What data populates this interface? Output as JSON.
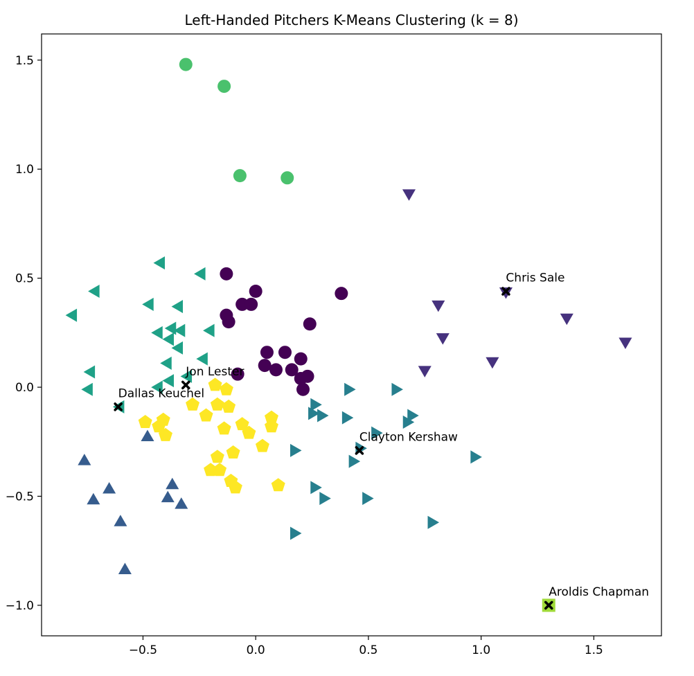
{
  "chart_data": {
    "type": "scatter",
    "title": "Left-Handed Pitchers K-Means Clustering (k = 8)",
    "xlabel": "",
    "ylabel": "",
    "xlim": [
      -0.95,
      1.8
    ],
    "ylim": [
      -1.14,
      1.62
    ],
    "x_ticks": [
      {
        "value": -0.5,
        "label": "−0.5"
      },
      {
        "value": 0.0,
        "label": "0.0"
      },
      {
        "value": 0.5,
        "label": "0.5"
      },
      {
        "value": 1.0,
        "label": "1.0"
      },
      {
        "value": 1.5,
        "label": "1.5"
      }
    ],
    "y_ticks": [
      {
        "value": 1.5,
        "label": "1.5"
      },
      {
        "value": 1.0,
        "label": "1.0"
      },
      {
        "value": 0.5,
        "label": "0.5"
      },
      {
        "value": 0.0,
        "label": "0.0"
      },
      {
        "value": -0.5,
        "label": "−0.5"
      },
      {
        "value": -1.0,
        "label": "−1.0"
      }
    ],
    "grid": false,
    "legend": "none",
    "series": [
      {
        "marker": "circle",
        "color": "#440154",
        "points": [
          [
            -0.13,
            0.52
          ],
          [
            -0.13,
            0.33
          ],
          [
            -0.12,
            0.3
          ],
          [
            -0.06,
            0.38
          ],
          [
            -0.02,
            0.38
          ],
          [
            0.0,
            0.44
          ],
          [
            0.24,
            0.29
          ],
          [
            0.38,
            0.43
          ],
          [
            0.05,
            0.16
          ],
          [
            0.13,
            0.16
          ],
          [
            0.04,
            0.1
          ],
          [
            0.09,
            0.08
          ],
          [
            0.16,
            0.08
          ],
          [
            0.2,
            0.13
          ],
          [
            0.2,
            0.04
          ],
          [
            0.23,
            0.05
          ],
          [
            0.21,
            -0.01
          ],
          [
            -0.08,
            0.06
          ]
        ]
      },
      {
        "marker": "triangle-down",
        "color": "#46327e",
        "points": [
          [
            0.68,
            0.89
          ],
          [
            1.11,
            0.44
          ],
          [
            0.81,
            0.38
          ],
          [
            1.38,
            0.32
          ],
          [
            0.83,
            0.23
          ],
          [
            1.64,
            0.21
          ],
          [
            1.05,
            0.12
          ],
          [
            0.75,
            0.08
          ]
        ]
      },
      {
        "marker": "triangle-up",
        "color": "#365c8d",
        "points": [
          [
            -0.48,
            -0.23
          ],
          [
            -0.76,
            -0.34
          ],
          [
            -0.65,
            -0.47
          ],
          [
            -0.72,
            -0.52
          ],
          [
            -0.37,
            -0.45
          ],
          [
            -0.39,
            -0.51
          ],
          [
            -0.33,
            -0.54
          ],
          [
            -0.6,
            -0.62
          ],
          [
            -0.58,
            -0.84
          ]
        ]
      },
      {
        "marker": "triangle-right",
        "color": "#277f8e",
        "points": [
          [
            0.41,
            -0.01
          ],
          [
            0.62,
            -0.01
          ],
          [
            0.26,
            -0.08
          ],
          [
            0.25,
            -0.12
          ],
          [
            0.29,
            -0.13
          ],
          [
            0.4,
            -0.14
          ],
          [
            0.69,
            -0.13
          ],
          [
            0.67,
            -0.16
          ],
          [
            0.53,
            -0.21
          ],
          [
            0.17,
            -0.29
          ],
          [
            0.46,
            -0.28
          ],
          [
            0.43,
            -0.34
          ],
          [
            0.97,
            -0.32
          ],
          [
            0.26,
            -0.46
          ],
          [
            0.3,
            -0.51
          ],
          [
            0.49,
            -0.51
          ],
          [
            0.78,
            -0.62
          ],
          [
            0.17,
            -0.67
          ]
        ]
      },
      {
        "marker": "triangle-left",
        "color": "#1fa187",
        "points": [
          [
            -0.42,
            0.57
          ],
          [
            -0.24,
            0.52
          ],
          [
            -0.71,
            0.44
          ],
          [
            -0.47,
            0.38
          ],
          [
            -0.34,
            0.37
          ],
          [
            -0.81,
            0.33
          ],
          [
            -0.37,
            0.27
          ],
          [
            -0.33,
            0.26
          ],
          [
            -0.2,
            0.26
          ],
          [
            -0.43,
            0.25
          ],
          [
            -0.38,
            0.22
          ],
          [
            -0.34,
            0.18
          ],
          [
            -0.23,
            0.13
          ],
          [
            -0.39,
            0.11
          ],
          [
            -0.73,
            0.07
          ],
          [
            -0.3,
            0.05
          ],
          [
            -0.38,
            0.03
          ],
          [
            -0.43,
            0.0
          ],
          [
            -0.74,
            -0.01
          ],
          [
            -0.6,
            -0.09
          ]
        ]
      },
      {
        "marker": "circle",
        "color": "#4ac16d",
        "points": [
          [
            -0.31,
            1.48
          ],
          [
            -0.14,
            1.38
          ],
          [
            -0.07,
            0.97
          ],
          [
            0.14,
            0.96
          ]
        ]
      },
      {
        "marker": "square",
        "color": "#a0da39",
        "points": [
          [
            1.3,
            -1.0
          ]
        ]
      },
      {
        "marker": "pentagon",
        "color": "#fde725",
        "points": [
          [
            -0.18,
            0.01
          ],
          [
            -0.13,
            -0.01
          ],
          [
            -0.28,
            -0.08
          ],
          [
            -0.17,
            -0.08
          ],
          [
            -0.12,
            -0.09
          ],
          [
            -0.22,
            -0.13
          ],
          [
            -0.49,
            -0.16
          ],
          [
            -0.41,
            -0.15
          ],
          [
            -0.43,
            -0.18
          ],
          [
            -0.4,
            -0.22
          ],
          [
            -0.14,
            -0.19
          ],
          [
            -0.06,
            -0.17
          ],
          [
            -0.03,
            -0.21
          ],
          [
            0.07,
            -0.14
          ],
          [
            0.07,
            -0.18
          ],
          [
            0.03,
            -0.27
          ],
          [
            -0.17,
            -0.32
          ],
          [
            -0.1,
            -0.3
          ],
          [
            -0.2,
            -0.38
          ],
          [
            -0.16,
            -0.38
          ],
          [
            -0.11,
            -0.43
          ],
          [
            -0.09,
            -0.46
          ],
          [
            0.1,
            -0.45
          ]
        ]
      }
    ],
    "highlights": [
      {
        "label": "Chris Sale",
        "x": 1.11,
        "y": 0.44,
        "marker": "x",
        "color": "#000000"
      },
      {
        "label": "Jon Lester",
        "x": -0.31,
        "y": 0.01,
        "marker": "x",
        "color": "#000000"
      },
      {
        "label": "Dallas Keuchel",
        "x": -0.61,
        "y": -0.09,
        "marker": "x",
        "color": "#000000"
      },
      {
        "label": "Clayton Kershaw",
        "x": 0.46,
        "y": -0.29,
        "marker": "x",
        "color": "#000000"
      },
      {
        "label": "Aroldis Chapman",
        "x": 1.3,
        "y": -1.0,
        "marker": "x",
        "color": "#000000"
      }
    ]
  }
}
